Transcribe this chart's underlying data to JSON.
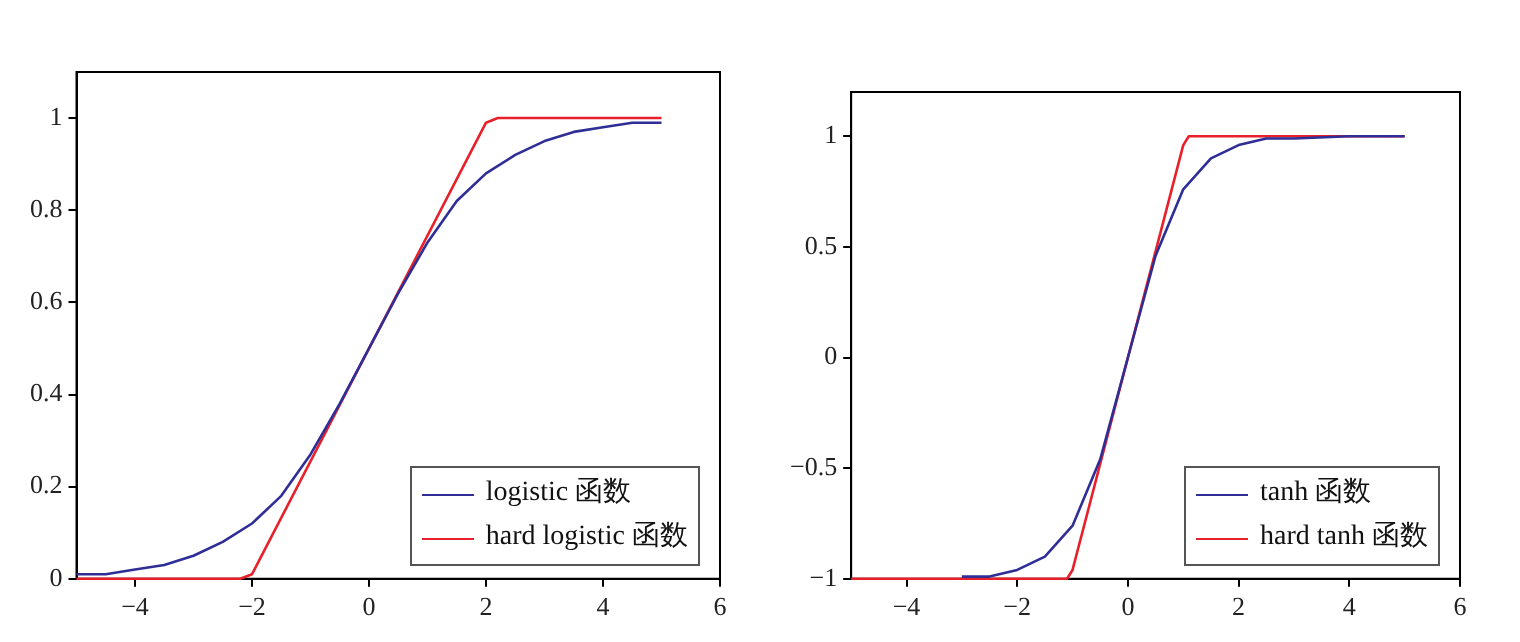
{
  "chart_data": [
    {
      "type": "line",
      "xlim": [
        -5,
        6
      ],
      "xticks": [
        -4,
        -2,
        0,
        2,
        4,
        6
      ],
      "ylim": [
        0,
        1.1
      ],
      "yticks": [
        0,
        0.2,
        0.4,
        0.6,
        0.8,
        1
      ],
      "grid": false,
      "legend": "bottom right",
      "marker": "none",
      "series": [
        {
          "name": "logistic 函数",
          "color": "#2e2e96",
          "x": [
            -5,
            -4.5,
            -4,
            -3.5,
            -3,
            -2.5,
            -2,
            -1.5,
            -1,
            -0.5,
            0,
            0.5,
            1,
            1.5,
            2,
            2.5,
            3,
            3.5,
            4,
            4.5,
            5
          ],
          "values": [
            0.01,
            0.01,
            0.02,
            0.03,
            0.05,
            0.08,
            0.12,
            0.18,
            0.27,
            0.38,
            0.5,
            0.62,
            0.73,
            0.82,
            0.88,
            0.92,
            0.95,
            0.97,
            0.98,
            0.99,
            0.99
          ]
        },
        {
          "name": "hard logistic 函数",
          "color": "#e8202a",
          "x": [
            -5,
            -2.2,
            -2,
            2,
            2.2,
            5
          ],
          "values": [
            0,
            0,
            0.01,
            0.99,
            1,
            1
          ]
        }
      ]
    },
    {
      "type": "line",
      "xlim": [
        -5,
        6
      ],
      "xticks": [
        -4,
        -2,
        0,
        2,
        4,
        6
      ],
      "ylim": [
        -1,
        1.2
      ],
      "yticks": [
        -1,
        -0.5,
        0,
        0.5,
        1
      ],
      "grid": false,
      "legend": "bottom right",
      "marker": "none",
      "series": [
        {
          "name": "tanh 函数",
          "color": "#2e2e96",
          "x": [
            -3,
            -2.5,
            -2,
            -1.5,
            -1,
            -0.5,
            0,
            0.5,
            1,
            1.5,
            2,
            2.5,
            3,
            4,
            5
          ],
          "values": [
            -0.99,
            -0.99,
            -0.96,
            -0.9,
            -0.76,
            -0.46,
            0,
            0.46,
            0.76,
            0.9,
            0.96,
            0.99,
            0.99,
            1,
            1
          ]
        },
        {
          "name": "hard tanh 函数",
          "color": "#e8202a",
          "x": [
            -5,
            -1.1,
            -1,
            1,
            1.1,
            5
          ],
          "values": [
            -1,
            -1,
            -0.96,
            0.96,
            1,
            1
          ]
        }
      ]
    }
  ]
}
